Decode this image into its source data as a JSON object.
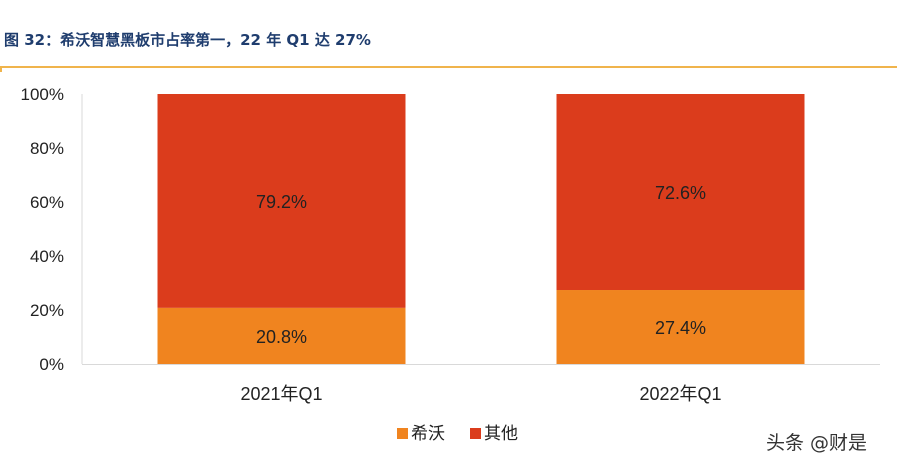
{
  "page": {
    "title": "图 32：希沃智慧黑板市占率第一，22 年 Q1 达 27%",
    "watermark": "头条 @财是"
  },
  "chart_data": {
    "type": "bar",
    "stacked": true,
    "categories": [
      "2021年Q1",
      "2022年Q1"
    ],
    "series": [
      {
        "name": "希沃",
        "values": [
          20.8,
          27.4
        ],
        "labels": [
          "20.8%",
          "27.4%"
        ],
        "color": "#f0841f"
      },
      {
        "name": "其他",
        "values": [
          79.2,
          72.6
        ],
        "labels": [
          "79.2%",
          "72.6%"
        ],
        "color": "#db3c1c"
      }
    ],
    "ylim": [
      0,
      100
    ],
    "yticks": [
      "0%",
      "20%",
      "40%",
      "60%",
      "80%",
      "100%"
    ],
    "legend": "bottom-center",
    "grid": false
  }
}
